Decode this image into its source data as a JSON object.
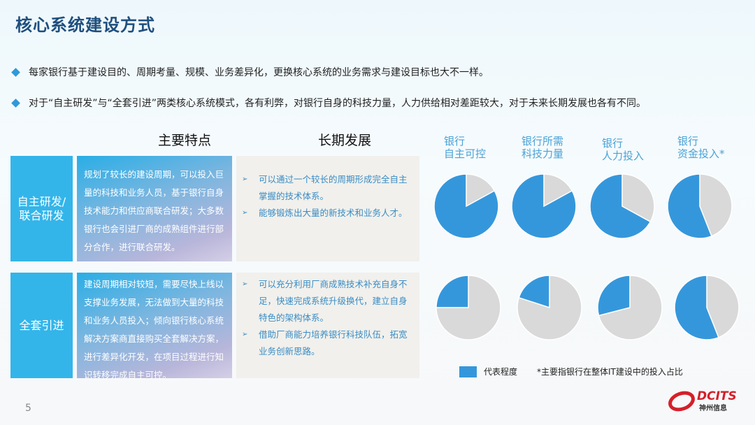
{
  "title": "核心系统建设方式",
  "bullets": [
    "每家银行基于建设目的、周期考量、规模、业务差异化，更换核心系统的业务需求与建设目标也大不一样。",
    "对于“自主研发”与“全套引进”两类核心系统模式，各有利弊，对银行自身的科技力量，人力供给相对差距较大，对于未来长期发展也各有不同。"
  ],
  "columns": {
    "features": "主要特点",
    "development": "长期发展"
  },
  "rows": [
    {
      "label": "自主研发/联合研发",
      "features": "规划了较长的建设周期，可以投入巨量的科技和业务人员，基于银行自身技术能力和供应商联合研发；大多数银行也会引进厂商的成熟组件进行部分合作，进行联合研发。",
      "development": [
        "可以通过一个较长的周期形成完全自主掌握的技术体系。",
        "能够锻炼出大量的新技术和业务人才。"
      ]
    },
    {
      "label": "全套引进",
      "features": "建设周期相对较短，需要尽快上线以支撑业务发展，无法做到大量的科技和业务人员投入；倾向银行核心系统解决方案商直接购买全套解决方案，进行差异化开发，在项目过程进行知识转移完成自主可控。",
      "development": [
        "可以充分利用厂商成熟技术补充自身不足，快速完成系统升级换代，建立自身特色的架构体系。",
        "借助厂商能力培养银行科技队伍，拓宽业务创新思路。"
      ]
    }
  ],
  "chart_data": {
    "type": "pie",
    "categories": [
      [
        "银行",
        "自主可控"
      ],
      [
        "银行所需",
        "科技力量"
      ],
      [
        "银行",
        "人力投入"
      ],
      [
        "银行",
        "资金投入*"
      ]
    ],
    "series": [
      {
        "row": "自主研发/联合研发",
        "values": [
          0.83,
          0.83,
          0.67,
          0.56
        ]
      },
      {
        "row": "全套引进",
        "values": [
          0.25,
          0.2,
          0.29,
          0.56
        ]
      }
    ],
    "legend": "代表程度",
    "footnote": "*主要指银行在整体IT建设中的投入占比",
    "colors": {
      "filled": "#3597db",
      "remainder": "#d9d9d9"
    }
  },
  "page_number": "5",
  "logo": {
    "text": "DCITS",
    "subtext": "神州信息",
    "color": "#d4202a"
  }
}
